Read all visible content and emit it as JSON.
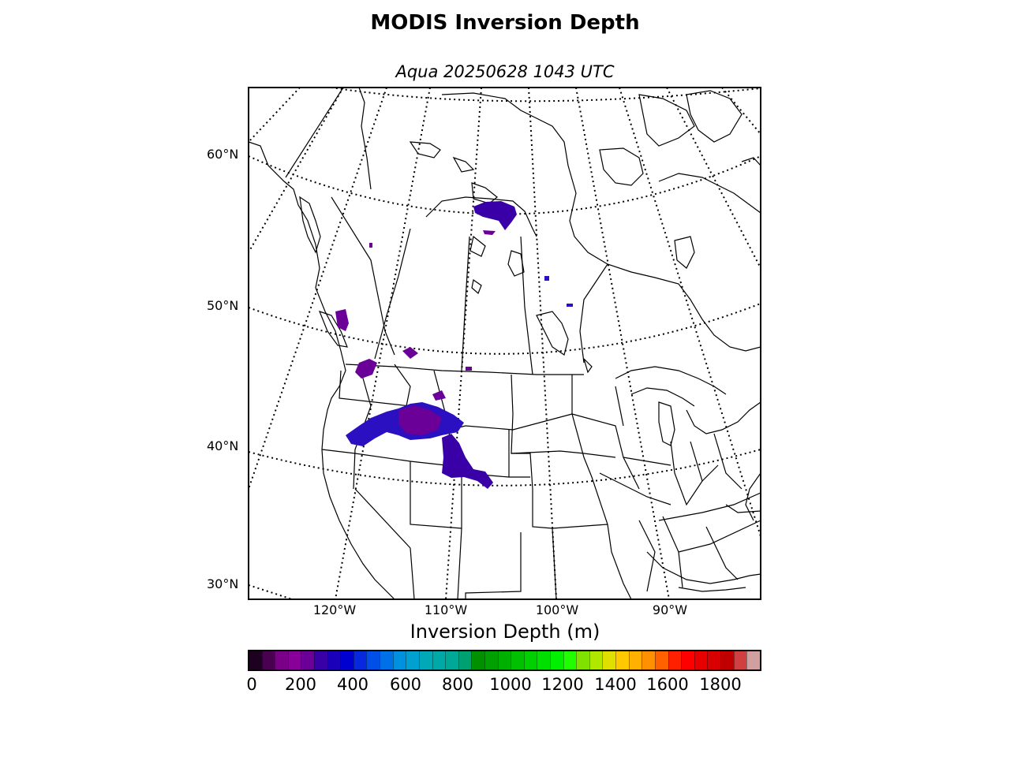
{
  "title": "MODIS Inversion Depth",
  "subtitle": "Aqua 20250628 1043 UTC",
  "latitude_labels": [
    "60°N",
    "50°N",
    "40°N",
    "30°N"
  ],
  "longitude_labels": [
    "120°W",
    "110°W",
    "100°W",
    "90°W"
  ],
  "colorbar": {
    "label": "Inversion Depth (m)",
    "ticks": [
      "0",
      "200",
      "400",
      "600",
      "800",
      "1000",
      "1200",
      "1400",
      "1600",
      "1800"
    ],
    "range": [
      0,
      1950
    ],
    "colors": [
      "#1e0020",
      "#4a0050",
      "#7a0088",
      "#880098",
      "#6a0098",
      "#3a00a8",
      "#1a00b8",
      "#0000d0",
      "#0828e0",
      "#0050e8",
      "#0070e8",
      "#0090e0",
      "#00a0d0",
      "#00a8b8",
      "#00a8a8",
      "#00a898",
      "#00a070",
      "#009000",
      "#00a000",
      "#00b000",
      "#00c000",
      "#00d000",
      "#00e000",
      "#00f000",
      "#20ff00",
      "#80e000",
      "#b0e800",
      "#e0e000",
      "#ffc800",
      "#ffb000",
      "#ff9000",
      "#ff6000",
      "#ff2000",
      "#ff0000",
      "#e80000",
      "#d80000",
      "#c00000",
      "#d04040",
      "#d0a0a0"
    ]
  },
  "colors": {
    "depth_purple": "#6a0098",
    "depth_blue": "#2a10c0",
    "depth_indigo": "#3a00a8"
  }
}
